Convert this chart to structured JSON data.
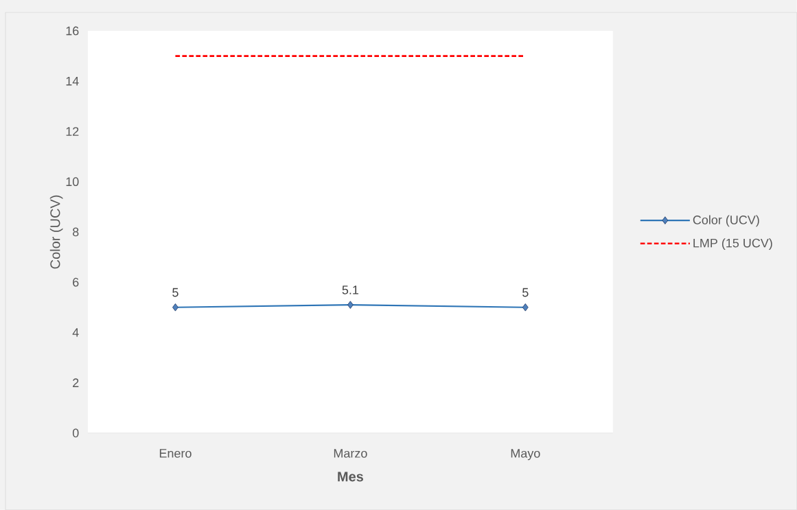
{
  "chart_data": {
    "type": "line",
    "xlabel": "Mes",
    "ylabel": "Color (UCV)",
    "categories": [
      "Enero",
      "Marzo",
      "Mayo"
    ],
    "series": [
      {
        "name": "Color (UCV)",
        "color": "#2e75b6",
        "values": [
          5,
          5.1,
          5
        ],
        "marker": "diamond",
        "line_style": "solid",
        "value_labels": [
          "5",
          "5.1",
          "5"
        ]
      },
      {
        "name": "LMP (15 UCV)",
        "color": "#ff0000",
        "values": [
          15,
          15,
          15
        ],
        "marker": "none",
        "line_style": "dashed"
      }
    ],
    "ylim": [
      0,
      16
    ],
    "yticks": [
      0,
      2,
      4,
      6,
      8,
      10,
      12,
      14,
      16
    ],
    "grid": false,
    "legend": "right"
  }
}
